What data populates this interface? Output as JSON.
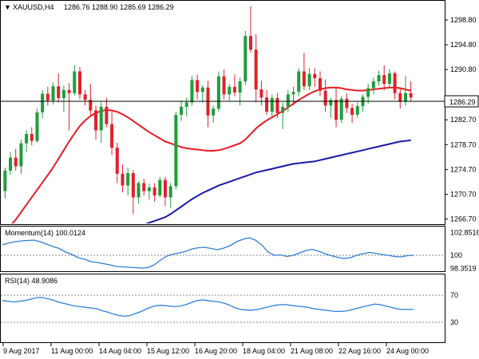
{
  "title": {
    "arrow": "▼",
    "symbol": "XAUUSD,H4",
    "ohlc": "1286.76 1288.90 1285.69 1286.29"
  },
  "current_price": "1286.29",
  "colors": {
    "up_candle": "#1f9d3a",
    "down_candle": "#e0212b",
    "ma_fast": "#e81c24",
    "ma_slow": "#1a1aa6",
    "oscillator": "#2f7fd6",
    "background": "#ffffff",
    "price_tag_bg": "#ffffff"
  },
  "price_axis_labels": [
    "1298.80",
    "1294.80",
    "1290.80",
    "1286.29",
    "1282.70",
    "1278.70",
    "1274.70",
    "1270.70",
    "1266.70"
  ],
  "momentum": {
    "label": "Momentum(14) 100.0124",
    "axis_labels": [
      "102.8516",
      "100",
      "98.3519"
    ]
  },
  "rsi": {
    "label": "RSI(14) 48.9086",
    "axis_labels": [
      "70",
      "30"
    ]
  },
  "time_labels": [
    "9 Aug 2017",
    "11 Aug 00:00",
    "14 Aug 04:00",
    "15 Aug 12:00",
    "16 Aug 20:00",
    "18 Aug 04:00",
    "21 Aug 08:00",
    "22 Aug 16:00",
    "24 Aug 00:00"
  ],
  "chart_data": {
    "type": "candlestick",
    "instrument": "XAUUSD",
    "timeframe": "H4",
    "price_range": [
      1266.0,
      1301.5
    ],
    "candles": [
      [
        1271.2,
        1275.0,
        1270.0,
        1274.5
      ],
      [
        1274.5,
        1277.5,
        1273.8,
        1276.6
      ],
      [
        1276.6,
        1278.0,
        1274.5,
        1275.2
      ],
      [
        1275.2,
        1279.5,
        1274.0,
        1278.9
      ],
      [
        1278.9,
        1281.0,
        1277.5,
        1280.4
      ],
      [
        1280.4,
        1281.5,
        1278.6,
        1279.3
      ],
      [
        1279.3,
        1284.5,
        1279.0,
        1283.9
      ],
      [
        1283.9,
        1287.5,
        1283.0,
        1286.9
      ],
      [
        1286.9,
        1288.0,
        1285.0,
        1285.8
      ],
      [
        1285.8,
        1288.7,
        1285.2,
        1288.1
      ],
      [
        1288.1,
        1290.2,
        1285.5,
        1286.2
      ],
      [
        1286.2,
        1288.2,
        1284.0,
        1287.5
      ],
      [
        1287.5,
        1288.6,
        1281.0,
        1287.0
      ],
      [
        1287.0,
        1291.5,
        1286.6,
        1290.5
      ],
      [
        1290.5,
        1291.2,
        1286.0,
        1286.8
      ],
      [
        1286.8,
        1287.5,
        1285.0,
        1285.9
      ],
      [
        1285.9,
        1288.5,
        1283.5,
        1284.2
      ],
      [
        1284.2,
        1285.0,
        1279.5,
        1281.0
      ],
      [
        1281.0,
        1285.5,
        1279.0,
        1284.8
      ],
      [
        1284.8,
        1286.2,
        1281.5,
        1282.0
      ],
      [
        1282.0,
        1284.0,
        1277.0,
        1278.2
      ],
      [
        1278.2,
        1279.0,
        1272.5,
        1274.0
      ],
      [
        1274.0,
        1275.5,
        1271.0,
        1272.1
      ],
      [
        1272.1,
        1275.0,
        1270.5,
        1274.1
      ],
      [
        1274.1,
        1274.6,
        1267.5,
        1270.2
      ],
      [
        1270.2,
        1272.8,
        1269.2,
        1272.5
      ],
      [
        1272.5,
        1273.2,
        1270.5,
        1271.2
      ],
      [
        1271.2,
        1272.4,
        1269.8,
        1271.8
      ],
      [
        1271.8,
        1272.5,
        1269.5,
        1270.5
      ],
      [
        1270.5,
        1273.5,
        1270.2,
        1273.0
      ],
      [
        1273.0,
        1273.5,
        1268.8,
        1270.2
      ],
      [
        1270.2,
        1272.5,
        1268.5,
        1272.0
      ],
      [
        1272.0,
        1284.0,
        1271.5,
        1283.5
      ],
      [
        1283.5,
        1285.8,
        1282.5,
        1284.8
      ],
      [
        1284.8,
        1286.3,
        1283.2,
        1285.5
      ],
      [
        1285.5,
        1289.8,
        1285.0,
        1289.1
      ],
      [
        1289.1,
        1290.0,
        1286.0,
        1287.2
      ],
      [
        1287.2,
        1288.3,
        1285.5,
        1287.9
      ],
      [
        1287.9,
        1289.0,
        1281.5,
        1283.4
      ],
      [
        1283.4,
        1285.0,
        1282.2,
        1284.5
      ],
      [
        1284.5,
        1290.5,
        1284.0,
        1289.7
      ],
      [
        1289.7,
        1290.8,
        1286.0,
        1286.8
      ],
      [
        1286.8,
        1288.5,
        1285.8,
        1288.0
      ],
      [
        1288.0,
        1290.0,
        1286.5,
        1287.1
      ],
      [
        1287.1,
        1289.5,
        1285.0,
        1288.9
      ],
      [
        1288.9,
        1297.0,
        1288.3,
        1296.2
      ],
      [
        1296.2,
        1301.0,
        1293.5,
        1294.0
      ],
      [
        1294.0,
        1296.5,
        1285.5,
        1287.6
      ],
      [
        1287.6,
        1289.0,
        1285.0,
        1286.3
      ],
      [
        1286.3,
        1287.5,
        1283.5,
        1284.0
      ],
      [
        1284.0,
        1286.8,
        1283.2,
        1286.2
      ],
      [
        1286.2,
        1287.0,
        1283.0,
        1283.8
      ],
      [
        1283.8,
        1285.5,
        1281.2,
        1284.8
      ],
      [
        1284.8,
        1287.5,
        1284.0,
        1286.8
      ],
      [
        1286.8,
        1288.0,
        1285.0,
        1287.2
      ],
      [
        1287.2,
        1291.0,
        1286.5,
        1290.5
      ],
      [
        1290.5,
        1293.5,
        1287.5,
        1288.1
      ],
      [
        1288.1,
        1291.0,
        1287.5,
        1290.1
      ],
      [
        1290.1,
        1291.0,
        1288.0,
        1289.4
      ],
      [
        1289.4,
        1290.5,
        1286.5,
        1287.4
      ],
      [
        1287.4,
        1289.2,
        1284.0,
        1285.0
      ],
      [
        1285.0,
        1286.3,
        1283.0,
        1285.9
      ],
      [
        1285.9,
        1287.8,
        1281.5,
        1282.7
      ],
      [
        1282.7,
        1286.5,
        1282.2,
        1286.1
      ],
      [
        1286.1,
        1287.0,
        1283.8,
        1284.6
      ],
      [
        1284.6,
        1285.3,
        1282.2,
        1283.5
      ],
      [
        1283.5,
        1285.5,
        1283.0,
        1284.9
      ],
      [
        1284.9,
        1286.8,
        1284.0,
        1286.4
      ],
      [
        1286.4,
        1288.5,
        1285.3,
        1287.8
      ],
      [
        1287.8,
        1289.5,
        1286.8,
        1288.9
      ],
      [
        1288.9,
        1290.6,
        1288.2,
        1289.9
      ],
      [
        1289.9,
        1291.5,
        1287.5,
        1288.5
      ],
      [
        1288.5,
        1290.9,
        1288.0,
        1290.2
      ],
      [
        1290.2,
        1290.5,
        1286.0,
        1287.0
      ],
      [
        1287.0,
        1287.8,
        1284.5,
        1285.6
      ],
      [
        1285.6,
        1289.8,
        1285.0,
        1287.0
      ],
      [
        1287.0,
        1288.9,
        1285.7,
        1286.3
      ]
    ],
    "ma_fast": [
      1264.5,
      1265.6,
      1266.6,
      1267.8,
      1269.0,
      1270.2,
      1271.4,
      1272.6,
      1273.8,
      1275.0,
      1276.4,
      1277.8,
      1279.2,
      1280.5,
      1281.7,
      1282.6,
      1283.3,
      1283.8,
      1284.1,
      1284.3,
      1284.2,
      1284.0,
      1283.6,
      1283.1,
      1282.5,
      1281.9,
      1281.3,
      1280.7,
      1280.2,
      1279.7,
      1279.2,
      1278.9,
      1278.6,
      1278.3,
      1278.1,
      1278.0,
      1277.9,
      1277.8,
      1277.7,
      1277.7,
      1277.8,
      1278.0,
      1278.3,
      1278.6,
      1278.9,
      1279.5,
      1280.4,
      1281.3,
      1282.0,
      1282.6,
      1283.1,
      1283.6,
      1284.1,
      1284.7,
      1285.3,
      1285.9,
      1286.4,
      1286.9,
      1287.3,
      1287.6,
      1287.8,
      1287.9,
      1287.9,
      1287.8,
      1287.6,
      1287.5,
      1287.4,
      1287.4,
      1287.5,
      1287.6,
      1287.7,
      1287.8,
      1287.9,
      1287.9,
      1287.8,
      1287.6,
      1287.4
    ],
    "ma_slow": [
      1258.0,
      1258.3,
      1258.6,
      1258.9,
      1259.2,
      1259.5,
      1259.8,
      1260.1,
      1260.4,
      1260.7,
      1261.0,
      1261.3,
      1261.6,
      1261.9,
      1262.2,
      1262.5,
      1262.8,
      1263.1,
      1263.4,
      1263.7,
      1264.0,
      1264.3,
      1264.6,
      1264.9,
      1265.2,
      1265.5,
      1265.8,
      1266.1,
      1266.4,
      1266.7,
      1267.0,
      1267.5,
      1268.1,
      1268.7,
      1269.3,
      1269.9,
      1270.4,
      1270.9,
      1271.3,
      1271.7,
      1272.1,
      1272.4,
      1272.7,
      1273.0,
      1273.3,
      1273.6,
      1273.9,
      1274.2,
      1274.4,
      1274.6,
      1274.8,
      1275.0,
      1275.2,
      1275.4,
      1275.6,
      1275.7,
      1275.8,
      1275.9,
      1276.0,
      1276.2,
      1276.4,
      1276.6,
      1276.8,
      1277.0,
      1277.2,
      1277.4,
      1277.6,
      1277.8,
      1278.0,
      1278.2,
      1278.4,
      1278.6,
      1278.8,
      1279.0,
      1279.2,
      1279.3,
      1279.4
    ],
    "momentum_values": [
      101.3,
      101.55,
      101.7,
      101.8,
      101.85,
      101.9,
      101.7,
      101.4,
      101.1,
      100.85,
      100.4,
      100.1,
      99.7,
      99.5,
      99.2,
      99.1,
      98.95,
      98.8,
      98.6,
      98.55,
      98.5,
      98.45,
      98.4,
      98.45,
      98.8,
      99.4,
      99.9,
      100.15,
      100.3,
      100.5,
      100.8,
      100.95,
      101.0,
      100.85,
      100.7,
      100.9,
      101.2,
      101.7,
      102.0,
      102.2,
      101.9,
      101.3,
      100.4,
      100.0,
      100.05,
      99.85,
      100.0,
      100.3,
      100.6,
      100.75,
      100.5,
      100.2,
      99.95,
      99.75,
      99.6,
      99.7,
      100.0,
      100.2,
      100.35,
      100.25,
      100.1,
      100.0,
      99.85,
      99.8,
      99.95,
      100.0
    ],
    "rsi_values": [
      62,
      61,
      60,
      61,
      62,
      64,
      66,
      67,
      65,
      63,
      60,
      58,
      56,
      54,
      53,
      52,
      51,
      50,
      47,
      45,
      42,
      40,
      39,
      40,
      43,
      46,
      50,
      53,
      55,
      55,
      54,
      53,
      54,
      56,
      59,
      62,
      63,
      62,
      61,
      60,
      58,
      55,
      51,
      49,
      48,
      48,
      49,
      51,
      53,
      55,
      56,
      56,
      55,
      54,
      53,
      52,
      50,
      49,
      48,
      47,
      46,
      46,
      47,
      49,
      51,
      53,
      55,
      57,
      56,
      54,
      52,
      50,
      49,
      49,
      49
    ]
  }
}
